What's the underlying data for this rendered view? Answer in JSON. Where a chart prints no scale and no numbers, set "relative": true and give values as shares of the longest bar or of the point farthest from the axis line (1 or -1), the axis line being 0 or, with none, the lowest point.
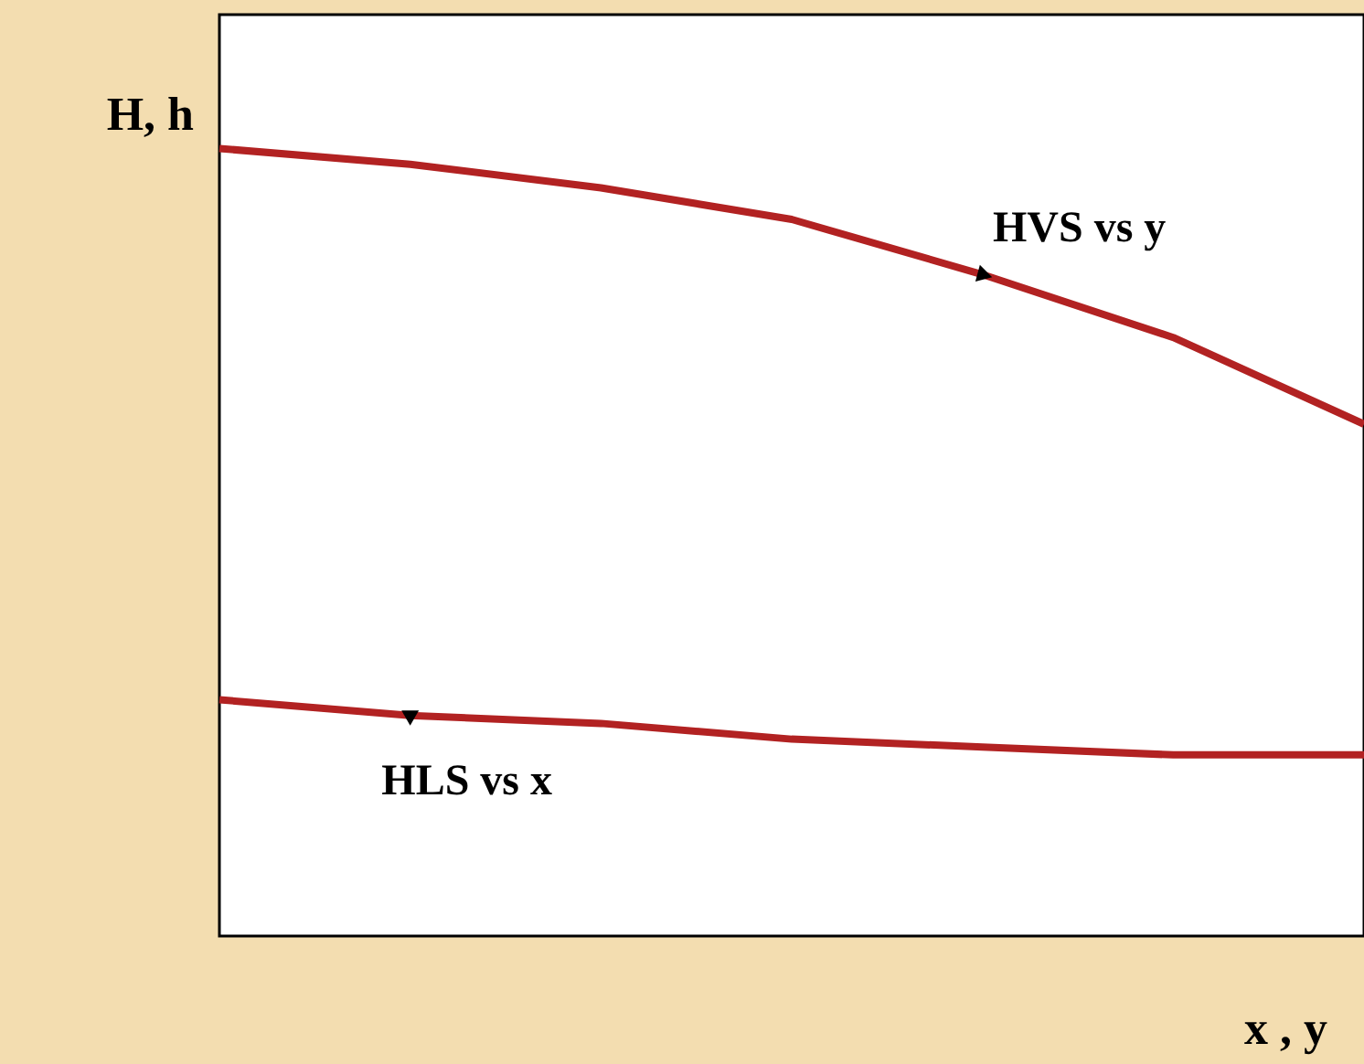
{
  "chart_data": {
    "type": "line",
    "relative": true,
    "xlabel": "x , y",
    "ylabel": "H, h",
    "categories": [
      null,
      null,
      null,
      null,
      null,
      null,
      null
    ],
    "series": [
      {
        "name": "HVS vs y",
        "color": "#b22222",
        "values": [
          1,
          0.98,
          0.95,
          0.91,
          0.84,
          0.76,
          0.65
        ]
      },
      {
        "name": "HLS vs x",
        "color": "#b22222",
        "values": [
          0.3,
          0.28,
          0.27,
          0.25,
          0.24,
          0.23,
          0.23
        ]
      }
    ],
    "tick_labels": false,
    "grid": false,
    "marker": "none",
    "line_style": "solid"
  }
}
